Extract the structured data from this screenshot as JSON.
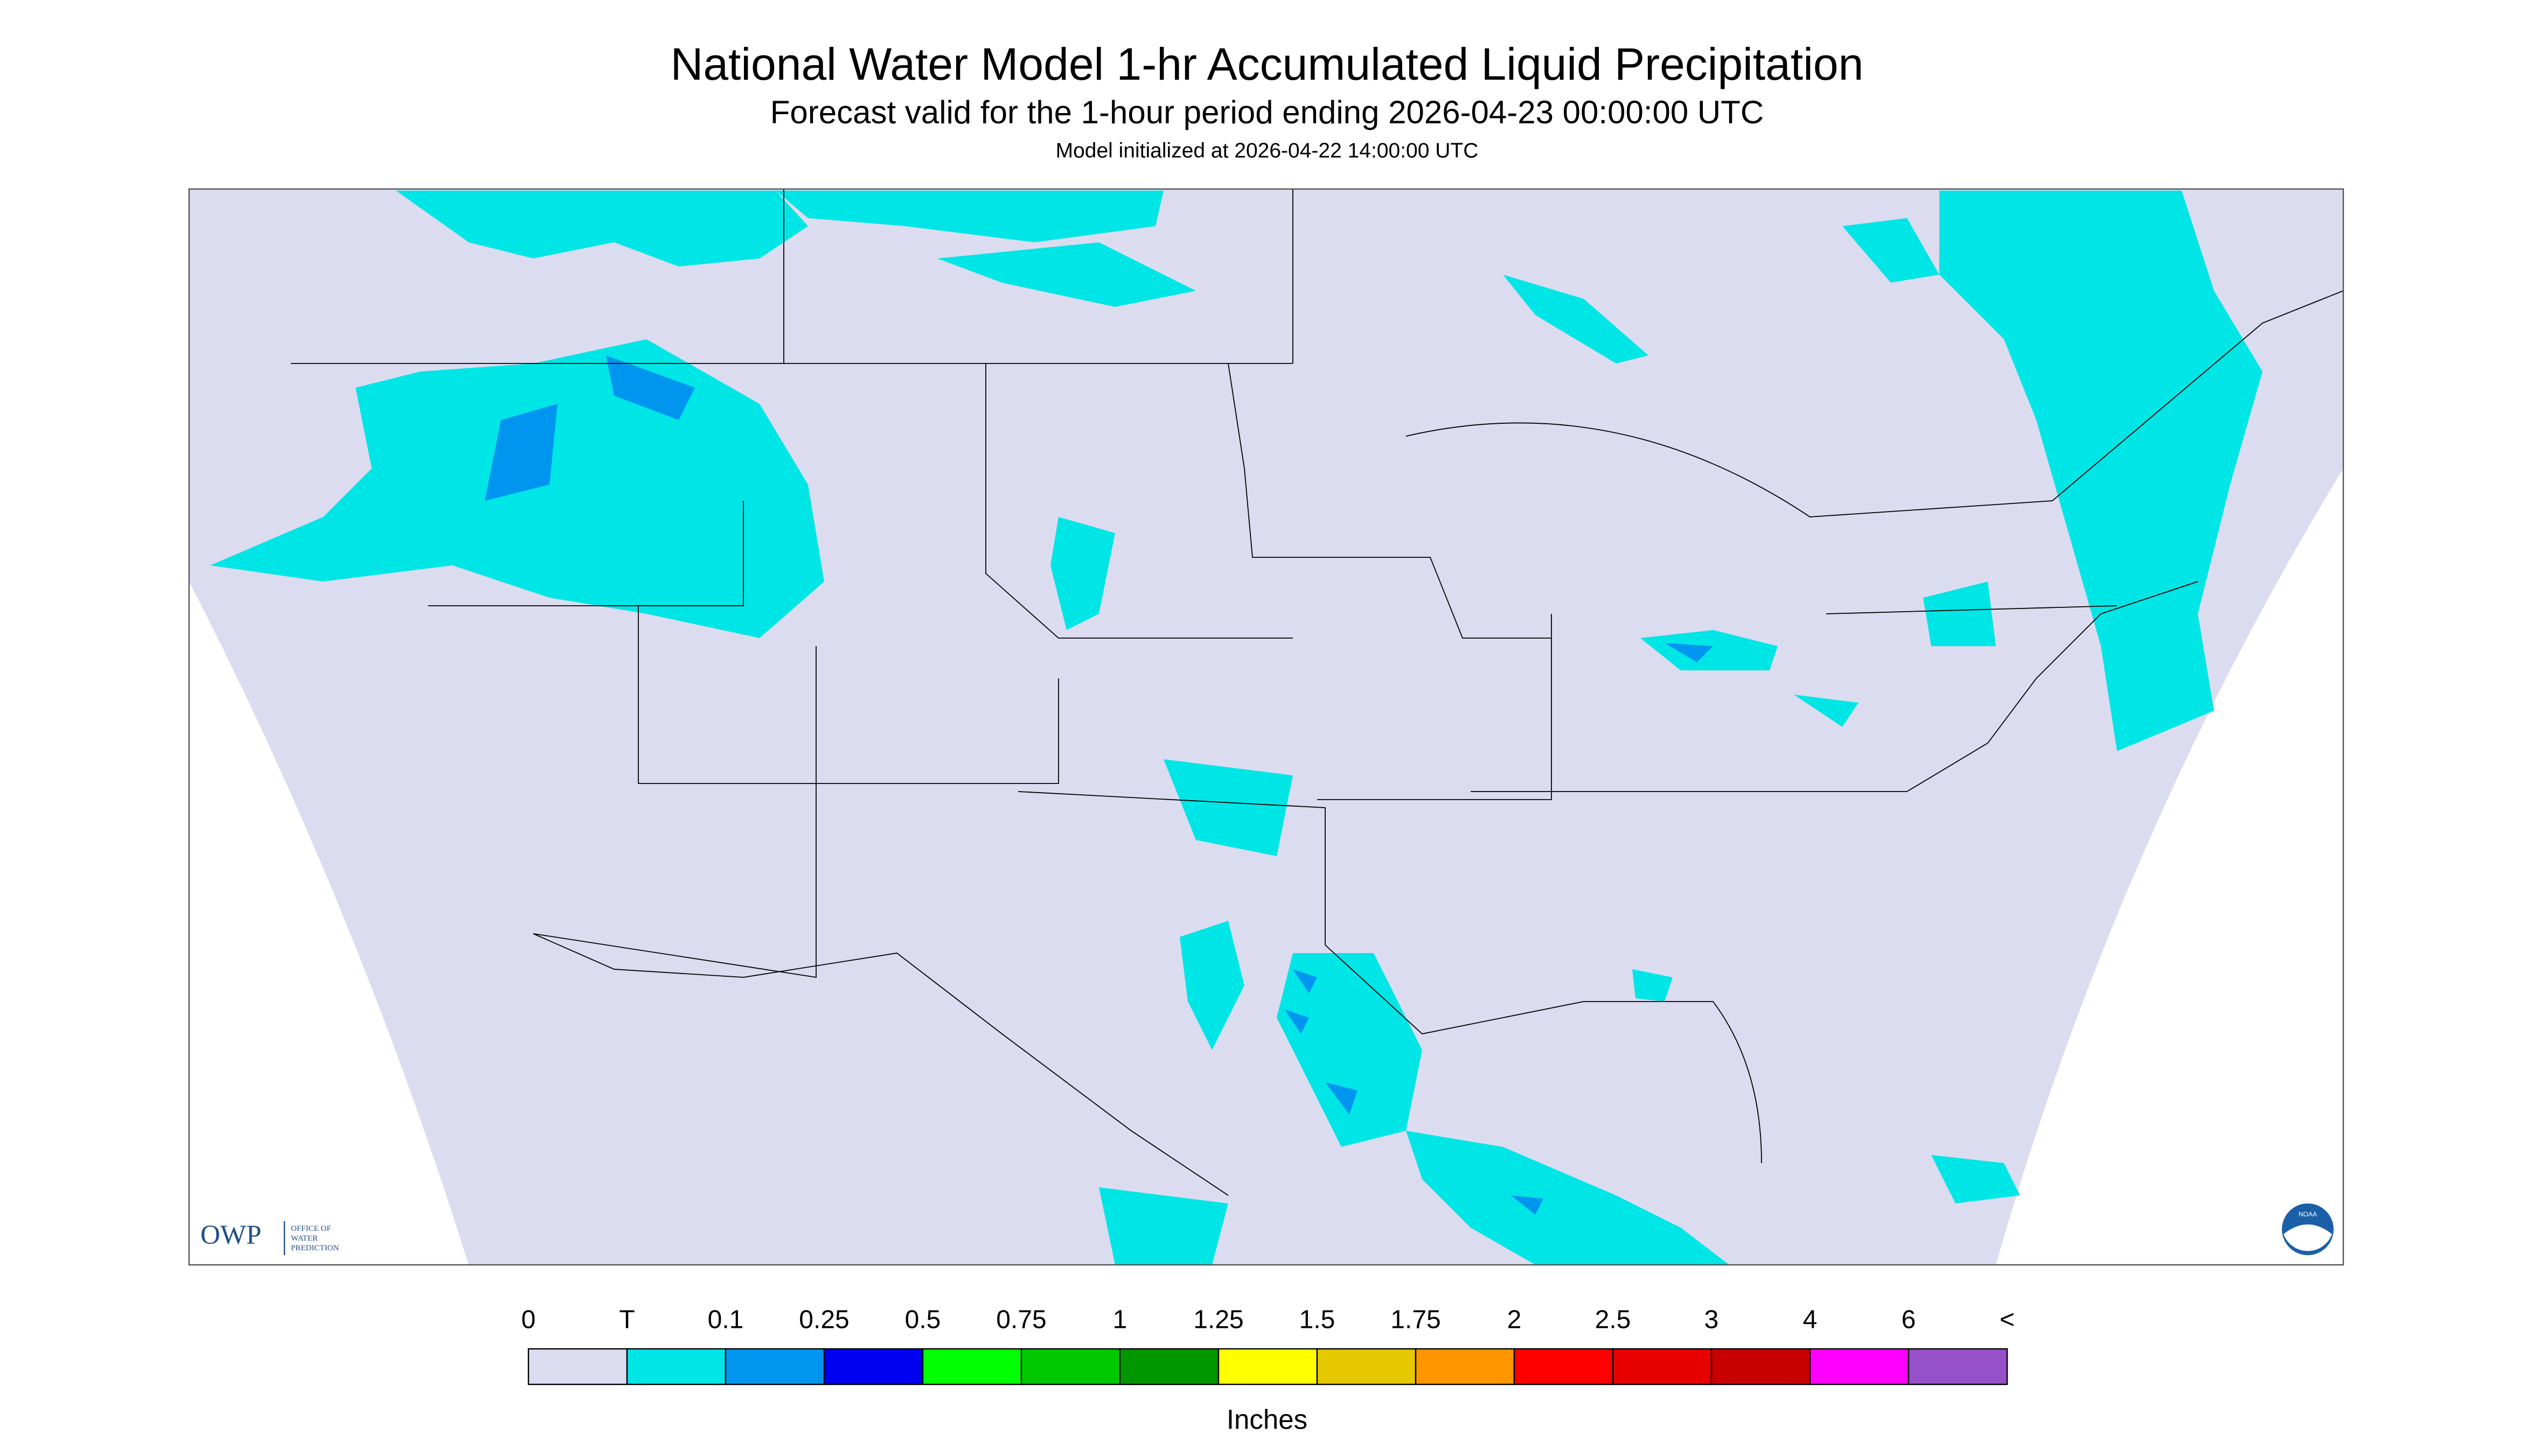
{
  "header": {
    "title": "National Water Model 1-hr Accumulated Liquid Precipitation",
    "subtitle": "Forecast valid for the 1-hour period ending 2026-04-23 00:00:00 UTC",
    "init": "Model initialized at 2026-04-22 14:00:00 UTC"
  },
  "logo": {
    "owp": "OWP",
    "office": [
      "OFFICE OF",
      "WATER",
      "PREDICTION"
    ],
    "noaa": "NOAA"
  },
  "legend": {
    "labels": [
      "0",
      "T",
      "0.1",
      "0.25",
      "0.5",
      "0.75",
      "1",
      "1.25",
      "1.5",
      "1.75",
      "2",
      "2.5",
      "3",
      "4",
      "6",
      "<"
    ],
    "colors": [
      "#dcdcf0",
      "#00e6e6",
      "#0096f0",
      "#0000f0",
      "#00ff00",
      "#00c800",
      "#009600",
      "#ffff00",
      "#e6c800",
      "#ff9600",
      "#ff0000",
      "#e60000",
      "#c80000",
      "#ff00ff",
      "#9650c8"
    ],
    "unit": "Inches"
  }
}
